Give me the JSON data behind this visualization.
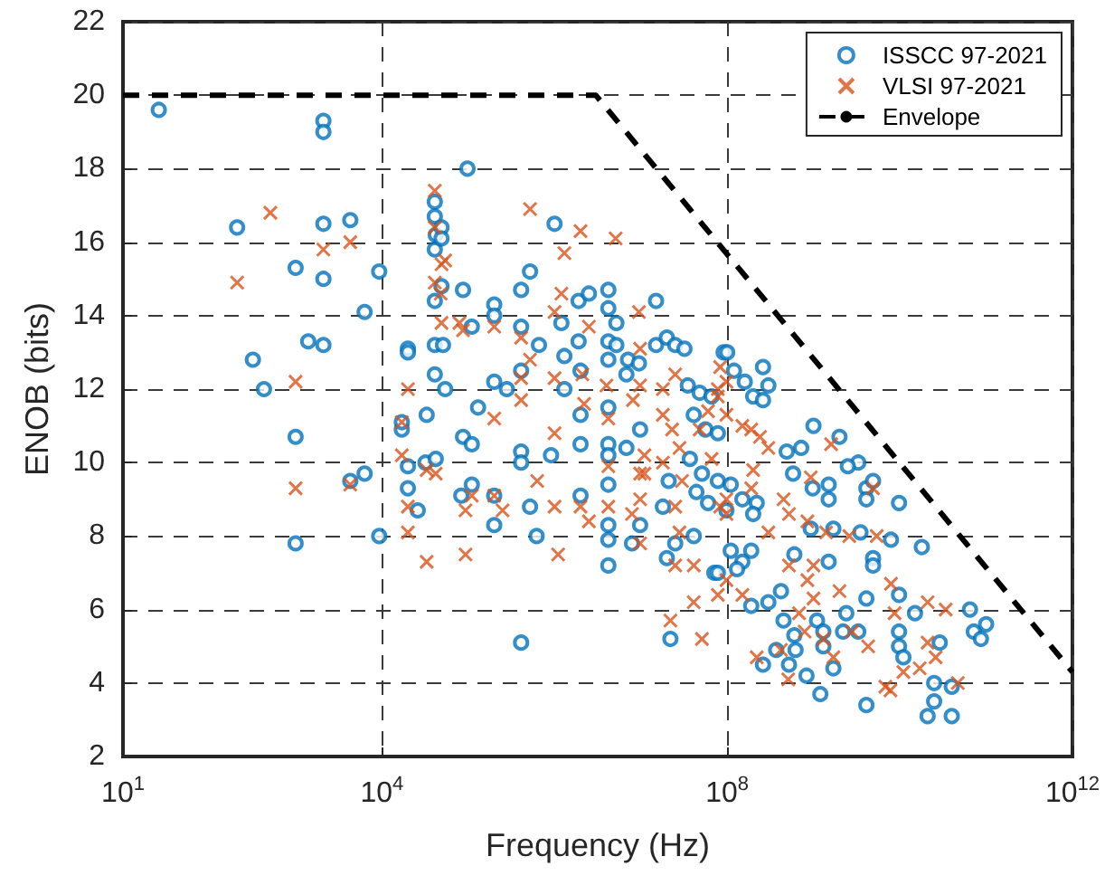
{
  "chart_data": {
    "type": "scatter",
    "xlabel": "Frequency (Hz)",
    "ylabel": "ENOB (bits)",
    "log": "x",
    "grid": true,
    "legend": "top right",
    "xlim": [
      10,
      1000000000000.0
    ],
    "xticks": [
      {
        "value": 10,
        "label": "10$^{1}$"
      },
      {
        "value": 10000.0,
        "label": "10$^{4}$"
      },
      {
        "value": 100000000.0,
        "label": "10$^{8}$"
      },
      {
        "value": 1000000000000.0,
        "label": "10$^{12}$"
      }
    ],
    "ylim": [
      2,
      22
    ],
    "yticks": [
      2,
      4,
      6,
      8,
      10,
      12,
      14,
      16,
      18,
      20,
      22
    ],
    "series": [
      {
        "name": "ISSCC 97-2021",
        "type": "scatter",
        "marker": "circle",
        "color": "#0072bd",
        "x": [
          26,
          210,
          320,
          430,
          1000,
          1000,
          1000,
          1400,
          2100,
          2100,
          2100,
          2100,
          2100,
          4300,
          6300,
          4300,
          6300,
          9300,
          9300,
          98000,
          41000,
          41000,
          42000,
          41000,
          49000,
          49000,
          49000,
          41000,
          87000,
          20000,
          20000,
          41000,
          51000,
          41000,
          54000,
          33000,
          130000,
          17000,
          17000,
          20000,
          20000,
          26000,
          32000,
          42000,
          87000,
          110000,
          83000,
          110000,
          200000,
          200000,
          110000,
          200000,
          200000,
          200000,
          280000,
          410000,
          520000,
          410000,
          410000,
          660000,
          410000,
          410000,
          410000,
          520000,
          620000,
          1000000,
          910000,
          1200000,
          1300000,
          1300000,
          1900000,
          2500000,
          1900000,
          2000000,
          2000000,
          2000000,
          2000000,
          4200000,
          4200000,
          5200000,
          4200000,
          5200000,
          4200000,
          4200000,
          4200000,
          4200000,
          4200000,
          4200000,
          4200000,
          4200000,
          7100000,
          6800000,
          6800000,
          7900000,
          9800000,
          9800000,
          9500000,
          15000000,
          15000000,
          20000000,
          25000000,
          32000000,
          20000000,
          22000000,
          25000000,
          41000000,
          71000000,
          35000000,
          48000000,
          66000000,
          41000000,
          56000000,
          78000000,
          37000000,
          51000000,
          44000000,
          60000000,
          78000000,
          21000000,
          18000000,
          91000000,
          100000000.0,
          260000000.0,
          300000000.0,
          200000000.0,
          260000000.0,
          160000000.0,
          120000000.0,
          1000000000.0,
          2000000000.0,
          3300000000.0,
          2500000000.0,
          720000000.0,
          490000000.0,
          580000000.0,
          980000000.0,
          1500000000.0,
          1500000000.0,
          4100000000.0,
          4900000000.0,
          4100000000.0,
          9800000000.0,
          220000000.0,
          200000000.0,
          110000000.0,
          98000000.0,
          150000000.0,
          930000000.0,
          1700000000.0,
          3500000000.0,
          7900000000.0,
          18000000000.0,
          110000000.0,
          190000000.0,
          150000000.0,
          78000000.0,
          130000000.0,
          600000000.0,
          1500000000.0,
          4900000000.0,
          4900000000.0,
          190000000.0,
          300000000.0,
          420000000.0,
          450000000.0,
          600000000.0,
          620000000.0,
          1100000000.0,
          1300000000.0,
          1300000000.0,
          2200000000.0,
          2400000000.0,
          3300000000.0,
          4100000000.0,
          9800000000.0,
          15000000000.0,
          9800000000.0,
          9800000000.0,
          11000000000.0,
          29000000000.0,
          25000000000.0,
          40000000000.0,
          25000000000.0,
          21000000000.0,
          40000000000.0,
          65000000000.0,
          72000000000.0,
          87000000000.0,
          100000000000.0,
          260000000.0,
          370000000.0,
          520000000.0,
          830000000.0,
          1200000000.0,
          1700000000.0,
          4100000000.0
        ],
        "values": [
          19.6,
          16.4,
          12.8,
          12,
          15.3,
          10.7,
          7.8,
          13.3,
          16.5,
          15,
          13.2,
          19.3,
          19,
          16.6,
          14.1,
          9.5,
          9.7,
          8,
          15.2,
          18,
          17.1,
          16.7,
          16.2,
          15.8,
          16.4,
          16.1,
          14.8,
          14.4,
          14.7,
          13.1,
          13,
          13.2,
          13.2,
          12.4,
          12,
          11.3,
          11.5,
          10.9,
          11.1,
          9.9,
          9.3,
          8.7,
          10,
          10.1,
          10.7,
          10.5,
          9.1,
          9.4,
          9.1,
          8.3,
          13.7,
          14.3,
          14,
          12.2,
          12,
          14.7,
          15.2,
          13.7,
          12.5,
          13.2,
          10.3,
          10,
          5.1,
          8.8,
          8,
          16.5,
          10.2,
          13.8,
          12.9,
          12,
          14.4,
          14.6,
          13.3,
          12.5,
          11.3,
          10.5,
          9.1,
          14.7,
          14.2,
          13.8,
          13.3,
          13.2,
          12.8,
          11.5,
          10.5,
          10.2,
          9.4,
          8.3,
          7.9,
          7.2,
          12.8,
          12.4,
          10.4,
          7.8,
          8.3,
          10.9,
          12.7,
          14.4,
          13.2,
          13.4,
          13.2,
          13.1,
          7.4,
          5.2,
          7.8,
          8,
          7,
          12.1,
          11.9,
          11.8,
          11.3,
          10.9,
          10.8,
          10.1,
          9.7,
          9.2,
          8.9,
          9.5,
          9.5,
          8.8,
          13,
          13,
          12.6,
          12.1,
          11.8,
          11.7,
          12.2,
          12.5,
          11,
          10.7,
          10,
          9.9,
          10.4,
          10.3,
          9.7,
          9.3,
          9.4,
          9,
          9.3,
          9.5,
          9,
          8.9,
          8.9,
          8.6,
          9.4,
          8.7,
          9,
          8.2,
          8.2,
          8.1,
          7.9,
          7.7,
          7.6,
          7.6,
          7.3,
          7,
          7.1,
          7.5,
          7.3,
          7.4,
          7.2,
          6.1,
          6.2,
          6.5,
          5.7,
          5.3,
          4.9,
          5.7,
          5.4,
          5,
          5.4,
          5.9,
          5.4,
          6.3,
          6.4,
          5.9,
          5.4,
          5,
          4.7,
          5.1,
          4,
          3.9,
          3.5,
          3.1,
          3.1,
          6,
          5.4,
          5.2,
          5.6,
          4.5,
          4.9,
          4.5,
          4.2,
          3.7,
          4.4,
          3.4
        ]
      },
      {
        "name": "VLSI 97-2021",
        "type": "scatter",
        "marker": "cross",
        "color": "#d95319",
        "x": [
          510,
          210,
          1000,
          1000,
          2100,
          4300,
          4300,
          41000,
          41000,
          54000,
          49000,
          41000,
          48000,
          49000,
          79000,
          87000,
          200000,
          20000,
          17000,
          17000,
          33000,
          42000,
          20000,
          20000,
          33000,
          93000,
          110000,
          93000,
          200000,
          200000,
          250000,
          520000,
          1300000,
          2000000,
          5100000,
          410000,
          410000,
          410000,
          520000,
          630000,
          1000000,
          1100000,
          1000000,
          1000000,
          1200000,
          1000000,
          2500000,
          2100000,
          2200000,
          2000000,
          2500000,
          4000000,
          4200000,
          4200000,
          4200000,
          9500000,
          9800000,
          9800000,
          8100000,
          11000000,
          9800000,
          9800000,
          11000000,
          7900000,
          9800000,
          18000000,
          25000000,
          18000000,
          23000000,
          28000000,
          18000000,
          30000000,
          25000000,
          28000000,
          25000000,
          41000000,
          41000000,
          22000000,
          51000000,
          60000000,
          48000000,
          78000000,
          66000000,
          83000000,
          78000000,
          83000000,
          98000000,
          78000000,
          98000000,
          150000000.0,
          190000000.0,
          240000000.0,
          300000000.0,
          200000000.0,
          190000000.0,
          98000000.0,
          98000000.0,
          300000000.0,
          450000000.0,
          520000000.0,
          930000000.0,
          850000000.0,
          1600000000.0,
          4900000000.0,
          1400000000.0,
          2600000000.0,
          5400000000.0,
          98000000.0,
          150000000.0,
          520000000.0,
          1000000000.0,
          850000000.0,
          1000000000.0,
          680000000.0,
          2000000000.0,
          2800000000.0,
          4300000000.0,
          7900000000.0,
          8700000000.0,
          21000000000.0,
          34000000000.0,
          21000000000.0,
          26000000000.0,
          17000000000.0,
          11000000000.0,
          6800000000.0,
          7800000000.0,
          47000000000.0,
          220000000.0,
          420000000.0,
          510000000.0,
          1300000000.0,
          1700000000.0,
          790000000.0
        ],
        "values": [
          16.8,
          14.9,
          12.2,
          9.3,
          15.8,
          16,
          9.4,
          17.4,
          16.4,
          15.5,
          15.4,
          14.9,
          14.6,
          13.8,
          13.8,
          13.6,
          13.7,
          12,
          11.1,
          10.2,
          9.8,
          9.7,
          8.8,
          8.1,
          7.3,
          8.7,
          9.1,
          7.5,
          11.2,
          9.1,
          8.7,
          16.9,
          15.7,
          16.3,
          16.1,
          13.4,
          12.3,
          11.7,
          12.8,
          9.5,
          8.8,
          7.5,
          10.8,
          12.3,
          14.6,
          14.1,
          13.7,
          12.4,
          11.6,
          8.8,
          8.4,
          12.1,
          11.2,
          9.9,
          8.8,
          14.1,
          13.1,
          12.1,
          11.7,
          10.2,
          9.7,
          9,
          9.7,
          8.6,
          7.8,
          12,
          12.4,
          11.3,
          10.9,
          10.4,
          10,
          9.5,
          8.8,
          8.1,
          7.2,
          7.2,
          6.2,
          5.7,
          5.2,
          11.4,
          10.9,
          12,
          10.1,
          8.8,
          6.4,
          12.6,
          12.2,
          11.8,
          11.3,
          11,
          10.9,
          10.7,
          10.4,
          9.8,
          9.3,
          9,
          8.6,
          8.1,
          9,
          8.6,
          9.6,
          8.4,
          10.5,
          9.3,
          8.1,
          8,
          8,
          6.8,
          6.4,
          7.2,
          7.2,
          6.8,
          6.3,
          5.9,
          6.5,
          5.4,
          5,
          6.7,
          5.9,
          6.2,
          6,
          5.1,
          4.7,
          4.4,
          4.3,
          3.9,
          3.8,
          4,
          4.7,
          4.9,
          4.1,
          5.2,
          4.7,
          5.4
        ]
      },
      {
        "name": "Envelope",
        "type": "line",
        "marker": "none",
        "line_style": "dashed",
        "color": "#000000",
        "x": [
          10,
          3000000,
          1000000000000.0
        ],
        "values": [
          20,
          20,
          4.3
        ]
      }
    ]
  }
}
